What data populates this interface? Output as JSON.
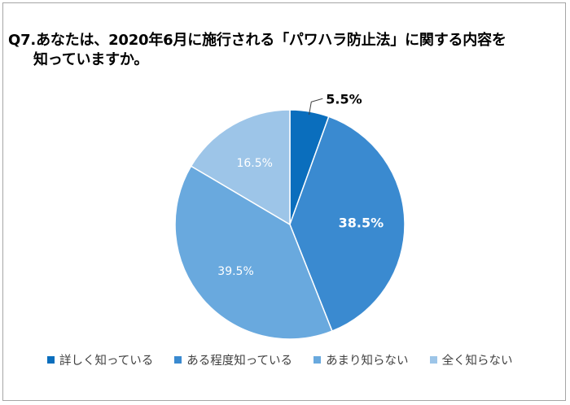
{
  "title": {
    "line1": "Q7.あなたは、2020年6月に施行される「パワハラ防止法」に関する内容を",
    "line2": "知っていますか。"
  },
  "chart_data": {
    "type": "pie",
    "categories": [
      "詳しく知っている",
      "ある程度知っている",
      "あまり知らない",
      "全く知らない"
    ],
    "values": [
      5.5,
      38.5,
      39.5,
      16.5
    ],
    "labels": [
      "5.5%",
      "38.5%",
      "39.5%",
      "16.5%"
    ],
    "colors": [
      "#0a6ebd",
      "#3a8ad0",
      "#69a9de",
      "#9dc5e8"
    ],
    "label_colors": [
      "#000000",
      "#ffffff",
      "#ffffff",
      "#ffffff"
    ],
    "label_bold": [
      true,
      true,
      false,
      false
    ],
    "start_angle_deg": 0,
    "direction": "clockwise",
    "legend_position": "bottom"
  }
}
